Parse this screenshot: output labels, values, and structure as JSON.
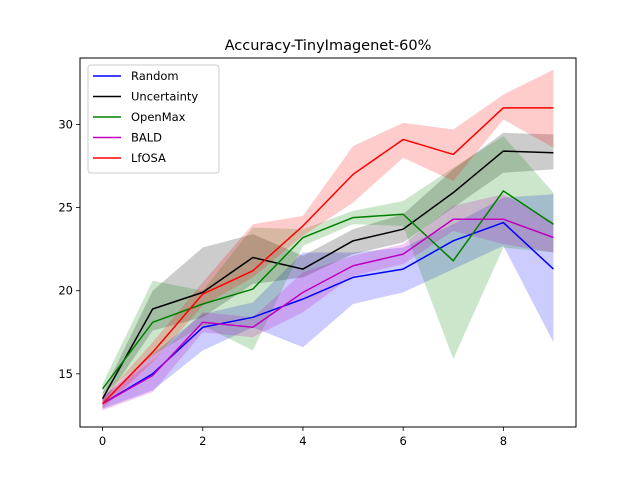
{
  "chart_data": {
    "type": "line",
    "title": "Accuracy-TinyImagenet-60%",
    "xlabel": "",
    "ylabel": "",
    "xlim": [
      -0.45,
      9.45
    ],
    "ylim": [
      11.8,
      34.0
    ],
    "x": [
      0,
      1,
      2,
      3,
      4,
      5,
      6,
      7,
      8,
      9
    ],
    "xticks": [
      0,
      2,
      4,
      6,
      8
    ],
    "yticks": [
      15,
      20,
      25,
      30
    ],
    "grid": false,
    "legend_position": "top-left",
    "series": [
      {
        "name": "Random",
        "color": "#0000ff",
        "values": [
          13.2,
          15.0,
          17.8,
          18.4,
          19.5,
          20.8,
          21.3,
          23.0,
          24.1,
          21.3
        ],
        "lower": [
          12.9,
          14.0,
          16.4,
          17.8,
          16.6,
          19.2,
          19.9,
          21.3,
          22.7,
          16.9
        ],
        "upper": [
          13.6,
          16.2,
          18.6,
          19.3,
          22.3,
          22.3,
          22.6,
          24.0,
          25.6,
          25.8
        ]
      },
      {
        "name": "Uncertainty",
        "color": "#000000",
        "values": [
          13.5,
          18.9,
          19.9,
          22.0,
          21.3,
          23.0,
          23.7,
          25.9,
          28.4,
          28.3
        ],
        "lower": [
          13.2,
          17.6,
          18.4,
          20.4,
          20.8,
          22.2,
          22.9,
          25.0,
          27.1,
          27.3
        ],
        "upper": [
          13.8,
          20.0,
          22.6,
          23.4,
          22.1,
          23.7,
          24.6,
          27.3,
          29.5,
          29.4
        ]
      },
      {
        "name": "OpenMax",
        "color": "#008000",
        "values": [
          14.1,
          18.1,
          19.2,
          20.1,
          23.2,
          24.4,
          24.6,
          21.8,
          26.0,
          24.0
        ],
        "lower": [
          13.8,
          16.1,
          17.9,
          16.4,
          22.7,
          24.0,
          23.9,
          15.9,
          22.6,
          22.3
        ],
        "upper": [
          14.4,
          20.6,
          20.0,
          23.8,
          23.7,
          24.8,
          25.4,
          27.4,
          29.3,
          25.9
        ]
      },
      {
        "name": "BALD",
        "color": "#bf00bf",
        "values": [
          13.2,
          14.9,
          18.1,
          17.8,
          19.9,
          21.5,
          22.2,
          24.3,
          24.3,
          23.2
        ],
        "lower": [
          12.8,
          13.9,
          17.5,
          17.2,
          18.7,
          20.9,
          21.6,
          23.6,
          22.8,
          22.3
        ],
        "upper": [
          13.6,
          15.8,
          18.7,
          18.4,
          21.1,
          22.1,
          22.8,
          25.1,
          25.8,
          24.1
        ]
      },
      {
        "name": "LfOSA",
        "color": "#ff0000",
        "values": [
          13.2,
          16.3,
          19.8,
          21.2,
          23.9,
          27.0,
          29.1,
          28.2,
          31.0,
          31.0
        ],
        "lower": [
          12.9,
          15.7,
          19.1,
          20.8,
          23.3,
          25.3,
          28.0,
          26.6,
          30.3,
          28.6
        ],
        "upper": [
          13.5,
          16.9,
          20.5,
          24.0,
          24.5,
          28.7,
          30.1,
          29.7,
          31.8,
          33.3
        ]
      }
    ]
  }
}
